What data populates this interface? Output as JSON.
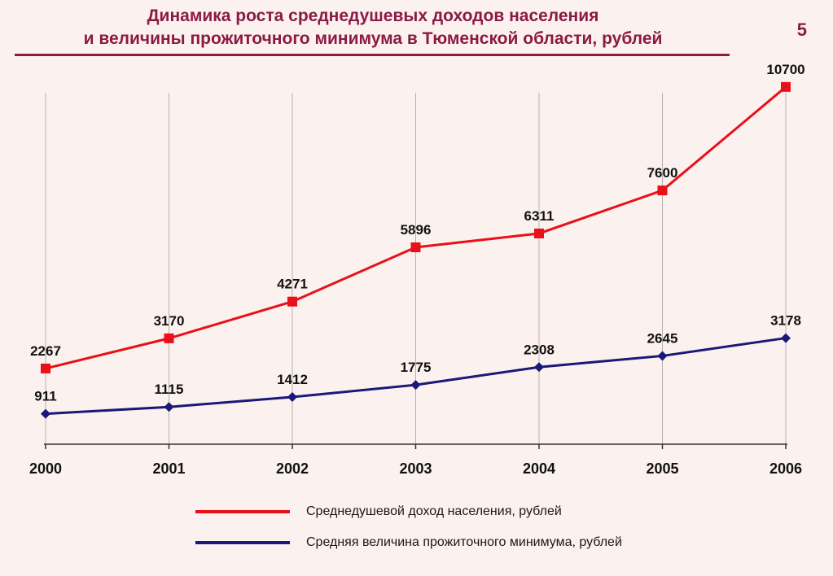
{
  "title": {
    "line1": "Динамика роста среднедушевых доходов населения",
    "line2": "и величины прожиточного минимума в Тюменской области, рублей"
  },
  "page_number": "5",
  "colors": {
    "title": "#8b1a44",
    "income": "#e8101a",
    "subsistence": "#1a1878",
    "background": "#fbf1ee"
  },
  "chart_data": {
    "type": "line",
    "title": "Динамика роста среднедушевых доходов населения и величины прожиточного минимума в Тюменской области, рублей",
    "xlabel": "",
    "ylabel": "",
    "categories": [
      "2000",
      "2001",
      "2002",
      "2003",
      "2004",
      "2005",
      "2006"
    ],
    "ylim": [
      0,
      11500
    ],
    "grid": "vertical",
    "legend_position": "bottom",
    "series": [
      {
        "name": "Среднедушевой доход населения, рублей",
        "values": [
          2267,
          3170,
          4271,
          5896,
          6311,
          7600,
          10700
        ],
        "labels": [
          "2267",
          "3170",
          "4271",
          "5896",
          "6311",
          "7600",
          "10700"
        ],
        "color": "#e8101a",
        "marker": "square"
      },
      {
        "name": "Средняя величина прожиточного минимума, рублей",
        "values": [
          911,
          1115,
          1412,
          1775,
          2308,
          2645,
          3178
        ],
        "labels": [
          "911",
          "1115",
          "1412",
          "1775",
          "2308",
          "2645",
          "3178"
        ],
        "color": "#1a1878",
        "marker": "diamond"
      }
    ]
  }
}
